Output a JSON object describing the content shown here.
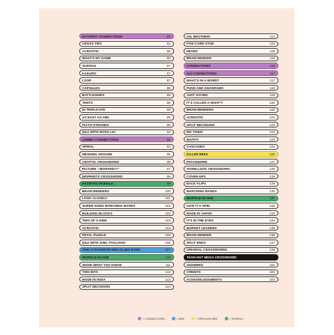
{
  "left_column": [
    {
      "title": "MYSTERY CONNECTIONS",
      "page": "83",
      "category": "connections"
    },
    {
      "title": "CROSS TIES",
      "page": "84"
    },
    {
      "title": "ACROSTIC",
      "page": "85"
    },
    {
      "title": "WHAT'S MY GAME",
      "page": "86"
    },
    {
      "title": "SUDOKU",
      "page": "87"
    },
    {
      "title": "KAKURO",
      "page": "87"
    },
    {
      "title": "LOOP",
      "page": "87"
    },
    {
      "title": "CAPSULES",
      "page": "88"
    },
    {
      "title": "BATTLESHIPS",
      "page": "88"
    },
    {
      "title": "TENTS",
      "page": "88"
    },
    {
      "title": "IN TRIPLICATE",
      "page": "89"
    },
    {
      "title": "AS EASY AS ABC",
      "page": "89"
    },
    {
      "title": "PICTO-STRANDS",
      "page": "90"
    },
    {
      "title": "Q&A WITH WYNA LIU",
      "page": "92"
    },
    {
      "title": "JUMBO CONNECTIONS",
      "page": "93",
      "category": "connections"
    },
    {
      "title": "SPIRAL",
      "page": "94"
    },
    {
      "title": "MESHING AROUND",
      "page": "95"
    },
    {
      "title": "CRYPTIC CROSSWORD",
      "page": "96"
    },
    {
      "title": "PICTURE \"JEOPARDY!\"",
      "page": "97"
    },
    {
      "title": "MISPRINTS CROSSWORD",
      "page": "98"
    },
    {
      "title": "HASHTAG WORDLE",
      "page": "99",
      "category": "wordle"
    },
    {
      "title": "BRAIN BENDERS",
      "page": "100"
    },
    {
      "title": "LOOK CLOSELY",
      "page": "101"
    },
    {
      "title": "SUPER-SIZED MARCHING BANDS",
      "page": "102"
    },
    {
      "title": "BUILDING BLOCKS",
      "page": "103"
    },
    {
      "title": "TWO OF A KIND",
      "page": "103"
    },
    {
      "title": "ACROSTIC",
      "page": "104"
    },
    {
      "title": "PETAL PUZZLE",
      "page": "105"
    },
    {
      "title": "Q&A WITH JOEL FAGLIANO",
      "page": "106"
    },
    {
      "title": "JOEL'S FAVORITE MINI CLUES EVER",
      "page": "107",
      "category": "mini"
    },
    {
      "title": "WORDLE-IN-ONE",
      "page": "110",
      "category": "wordle"
    },
    {
      "title": "SHOW WHAT YOU KNOW",
      "page": "111"
    },
    {
      "title": "TWO BITS",
      "page": "112"
    },
    {
      "title": "MADE IN INDIA",
      "page": "113"
    },
    {
      "title": "SPLIT DECISIONS",
      "page": "114"
    }
  ],
  "right_column": [
    {
      "title": "OH, BROTHER!",
      "page": "114"
    },
    {
      "title": "FIVE-CARD STUD",
      "page": "115"
    },
    {
      "title": "HEXED",
      "page": "115"
    },
    {
      "title": "BRAIN BENDER",
      "page": "115"
    },
    {
      "title": "CONNECTIONS",
      "page": "116",
      "category": "connections"
    },
    {
      "title": "4x4 CONNECTIONS",
      "page": "117",
      "category": "connections"
    },
    {
      "title": "WHAT'S IN A WORD?",
      "page": "117"
    },
    {
      "title": "PUNS AND ANAGRAMS",
      "page": "118"
    },
    {
      "title": "JUST SAYING",
      "page": "119"
    },
    {
      "title": "IT'S CALLED A WHAT?!",
      "page": "120"
    },
    {
      "title": "BRAIN BENDERS",
      "page": "120"
    },
    {
      "title": "ACROSTIC",
      "page": "121"
    },
    {
      "title": "SPLIT DECISIONS",
      "page": "122"
    },
    {
      "title": "MO TOWN",
      "page": "122"
    },
    {
      "title": "MAPPIT",
      "page": "123"
    },
    {
      "title": "CASCADES",
      "page": "124"
    },
    {
      "title": "KILLER BEES",
      "page": "125",
      "category": "spelling"
    },
    {
      "title": "PATCHWORK",
      "page": "127"
    },
    {
      "title": "VOWELLESS CROSSWORD",
      "page": "128"
    },
    {
      "title": "COVER-UPS",
      "page": "129"
    },
    {
      "title": "BACK FLIPS",
      "page": "129"
    },
    {
      "title": "MARCHING BANDS",
      "page": "130"
    },
    {
      "title": "WORDLE-IN-ONE",
      "page": "131",
      "category": "wordle"
    },
    {
      "title": "GIVE IT A SPIN",
      "page": "132"
    },
    {
      "title": "MADE IN JAPAN",
      "page": "133"
    },
    {
      "title": "IT'S IN THE EYES",
      "page": "134"
    },
    {
      "title": "MARKET LEADERS",
      "page": "136"
    },
    {
      "title": "BRAIN BENDER",
      "page": "136"
    },
    {
      "title": "SPLIT ENDS",
      "page": "137"
    },
    {
      "title": "ORIGINAL CROSSWORDS",
      "page": "138"
    },
    {
      "title": "TEAR-OUT MEGA CROSSWORD",
      "page": "",
      "category": "black"
    },
    {
      "title": "ANSWERS",
      "page": "161"
    },
    {
      "title": "CREDITS",
      "page": "222"
    },
    {
      "title": "ACKNOWLEDGMENTS",
      "page": "223"
    }
  ],
  "legend": [
    {
      "label": "= CONNECTIONS",
      "color": "#b77ec2"
    },
    {
      "label": "= MINI",
      "color": "#4f9fd8"
    },
    {
      "label": "= SPELLING BEE",
      "color": "#f2e25a"
    },
    {
      "label": "= WORDLE",
      "color": "#4ea870"
    }
  ]
}
